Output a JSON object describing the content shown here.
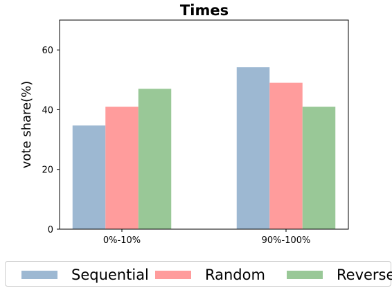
{
  "chart_data": {
    "type": "bar",
    "title": "Times",
    "xlabel": "",
    "ylabel": "vote share(%)",
    "ylim": [
      0,
      70
    ],
    "yticks": [
      0,
      20,
      40,
      60
    ],
    "grid": false,
    "legend_position": "bottom",
    "categories": [
      "0%-10%",
      "90%-100%"
    ],
    "series": [
      {
        "name": "Sequential",
        "color": "#9db8d2",
        "values": [
          34.7,
          54.2
        ]
      },
      {
        "name": "Random",
        "color": "#ff9c9c",
        "values": [
          41.0,
          49.0
        ]
      },
      {
        "name": "Reverse",
        "color": "#99c897",
        "values": [
          47.0,
          41.0
        ]
      }
    ]
  }
}
